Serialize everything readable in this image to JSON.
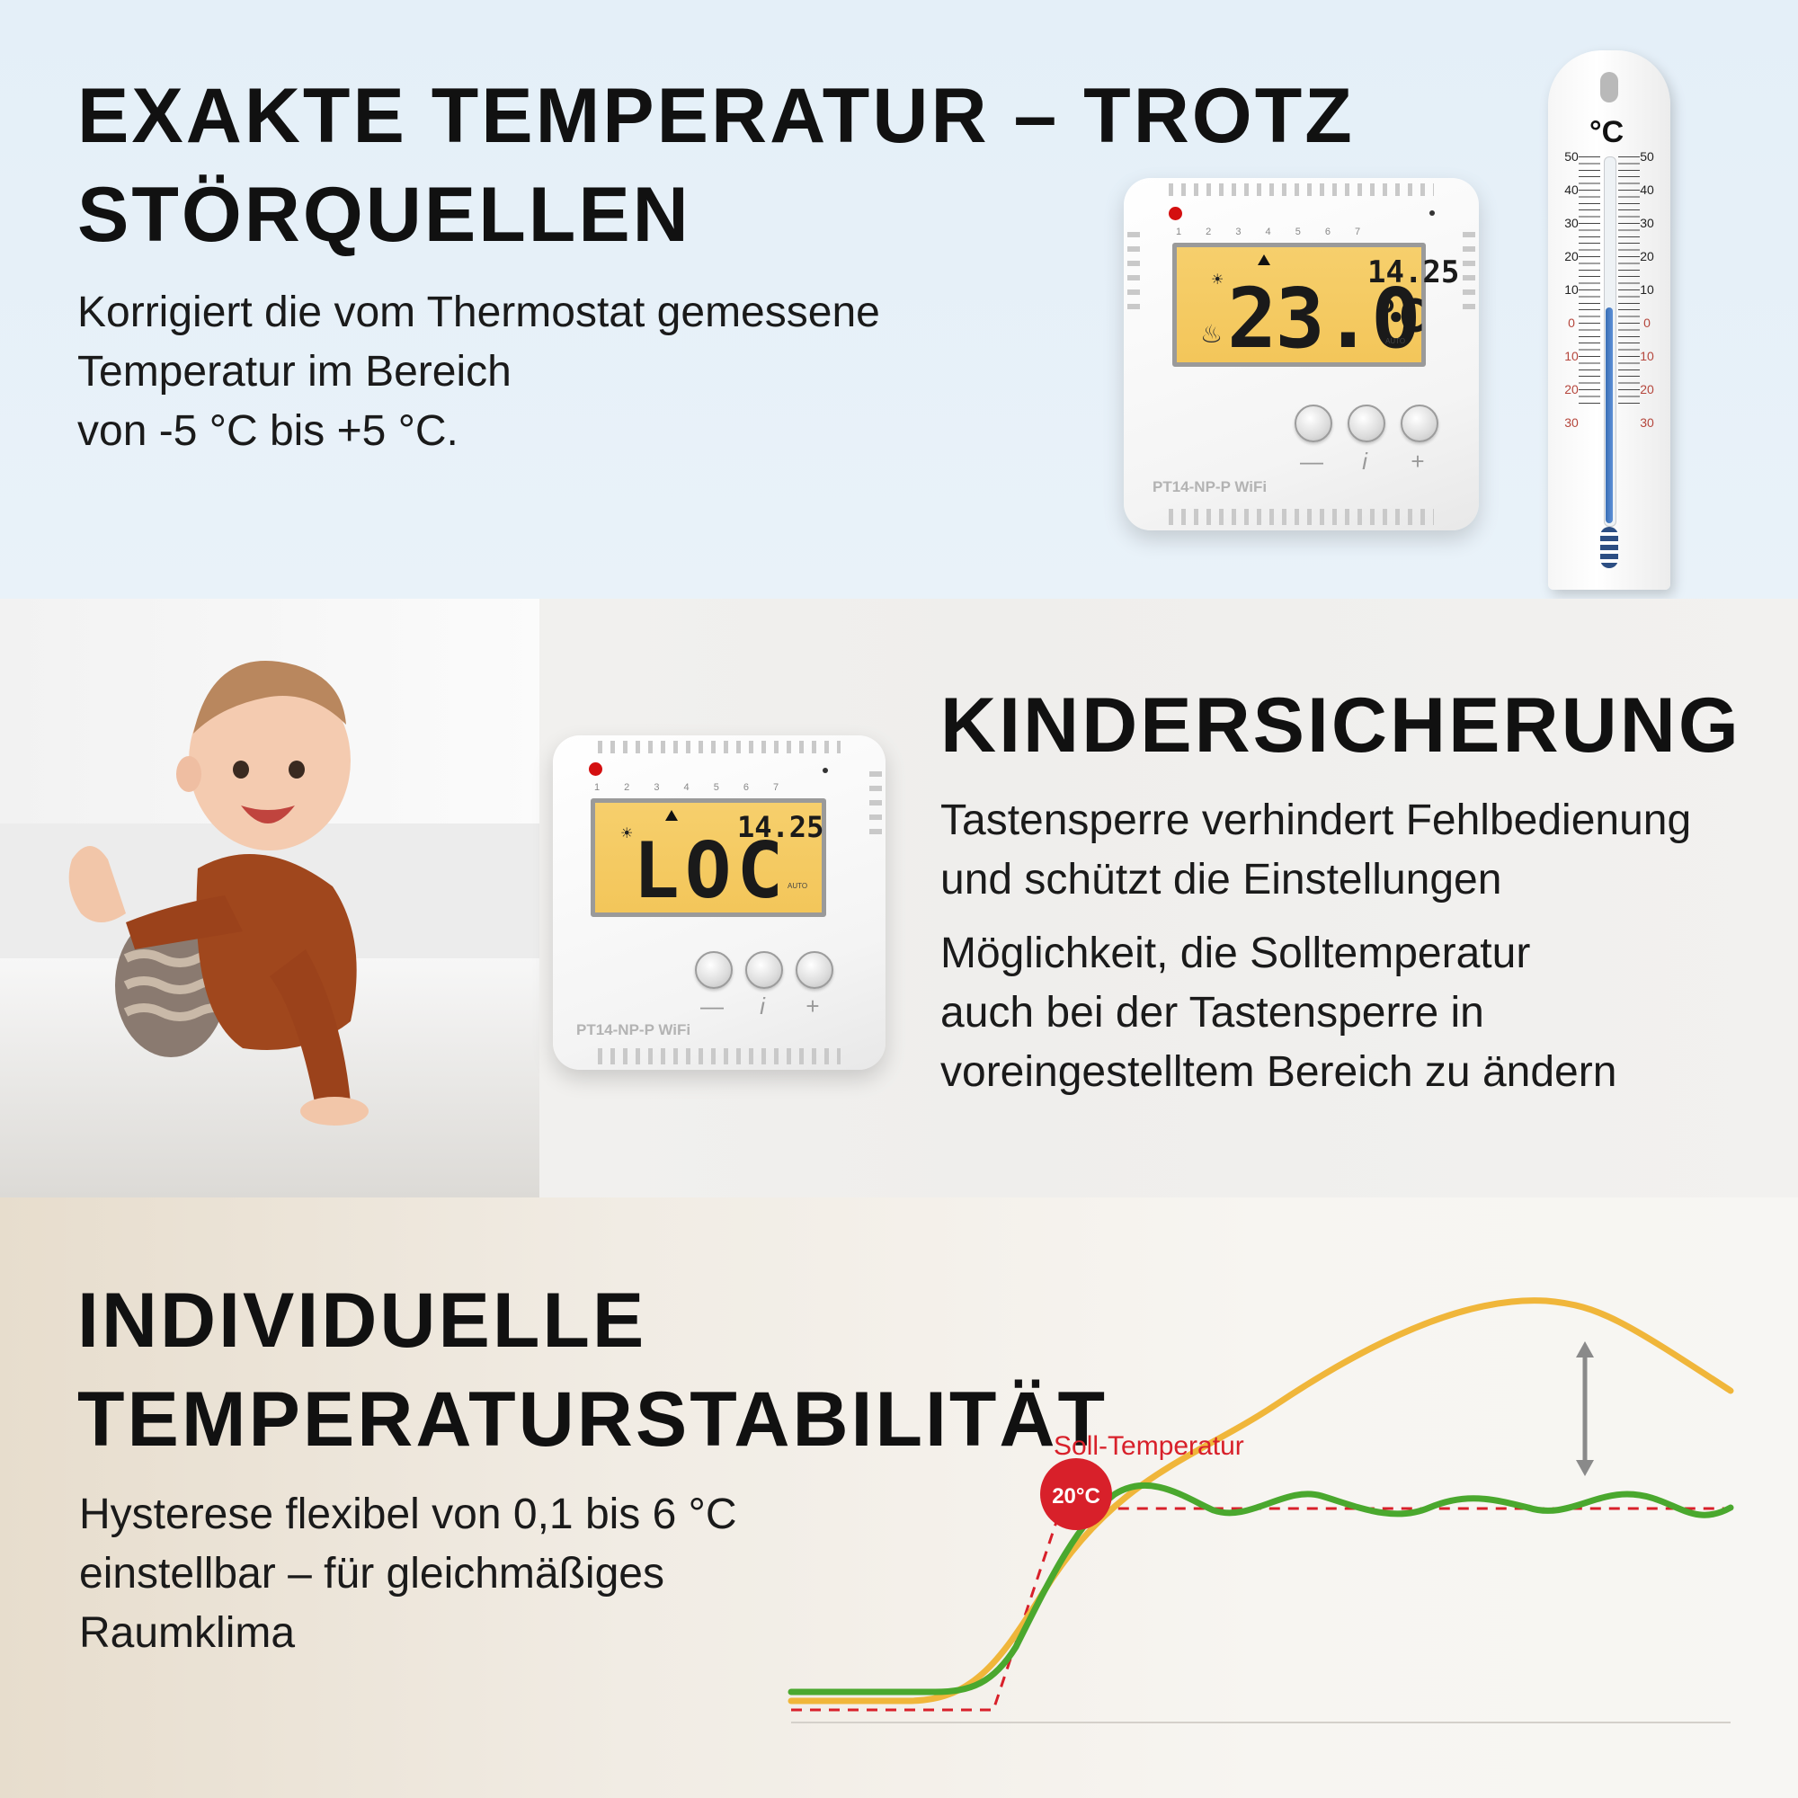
{
  "section1": {
    "title_line1": "EXAKTE TEMPERATUR – TROTZ",
    "title_line2": "STÖRQUELLEN",
    "body_lines": [
      "Korrigiert die vom Thermostat gemessene",
      "Temperatur im Bereich",
      "von -5 °C bis +5 °C."
    ],
    "thermostat": {
      "days": "1 2 3 4 5 6 7",
      "lcd_main": "23.0",
      "lcd_unit": "°C",
      "lcd_time": "14.25",
      "lcd_auto": "AUTO",
      "btn_minus": "—",
      "btn_info": "i",
      "btn_plus": "+",
      "model": "PT14-NP-P WiFi"
    },
    "wall_thermometer": {
      "unit": "°C",
      "left_scale": [
        "50",
        "40",
        "30",
        "20",
        "10",
        "0",
        "10",
        "20",
        "30"
      ],
      "right_scale": [
        "50",
        "40",
        "30",
        "20",
        "10",
        "0",
        "10",
        "20",
        "30"
      ],
      "positive_color": "#222222",
      "negative_color": "#b5463c"
    }
  },
  "section2": {
    "title": "KINDERSICHERUNG",
    "body_lines": [
      "Tastensperre verhindert Fehlbedienung",
      "und schützt die Einstellungen"
    ],
    "body2_lines": [
      "Möglichkeit, die Solltemperatur",
      "auch bei der Tastensperre in",
      "voreingestelltem Bereich zu ändern"
    ],
    "thermostat": {
      "days": "1 2 3 4 5 6 7",
      "lcd_main": "LOC",
      "lcd_time": "14.25",
      "lcd_auto": "AUTO",
      "btn_minus": "—",
      "btn_info": "i",
      "btn_plus": "+",
      "model": "PT14-NP-P WiFi"
    }
  },
  "section3": {
    "title_line1": "INDIVIDUELLE",
    "title_line2": "TEMPERATURSTABILITÄT",
    "body_lines": [
      "Hysterese flexibel von 0,1 bis 6 °C",
      "einstellbar – für gleichmäßiges",
      "Raumklima"
    ],
    "chart_label": "Soll-Temperatur",
    "setpoint_badge": "20°C",
    "colors": {
      "green": "#4aa82e",
      "yellow": "#f0b63a",
      "setpoint": "#d8202a",
      "arrow": "#8a8a8a"
    }
  }
}
